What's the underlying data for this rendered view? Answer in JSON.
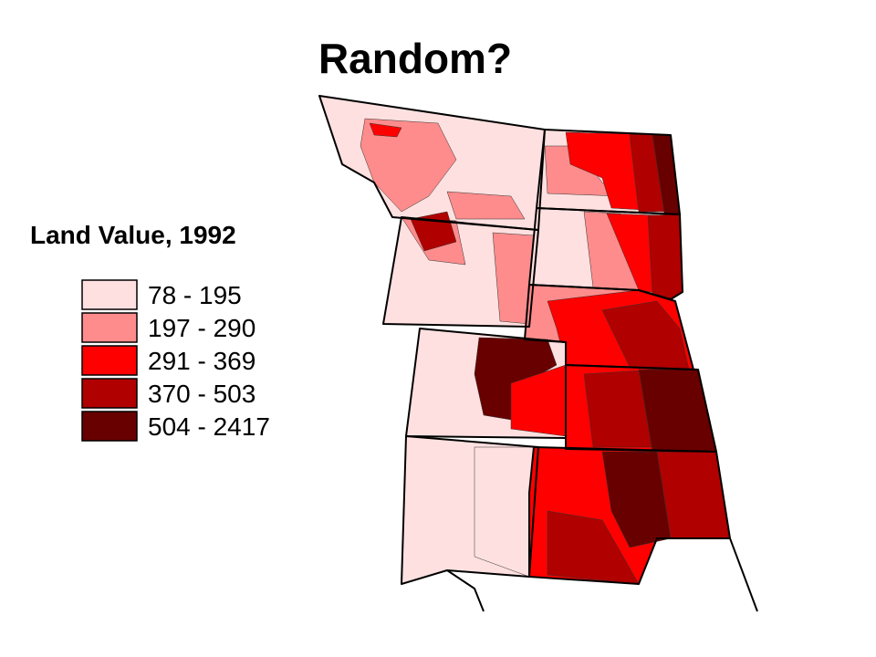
{
  "title": "Random?",
  "legend": {
    "title": "Land Value, 1992",
    "items": [
      {
        "label": "78 - 195",
        "color": "#ffe0e0"
      },
      {
        "label": "197 - 290",
        "color": "#ff8c8c"
      },
      {
        "label": "291 - 369",
        "color": "#ff0000"
      },
      {
        "label": "370 - 503",
        "color": "#b00000"
      },
      {
        "label": "504 - 2417",
        "color": "#680000"
      }
    ]
  }
}
